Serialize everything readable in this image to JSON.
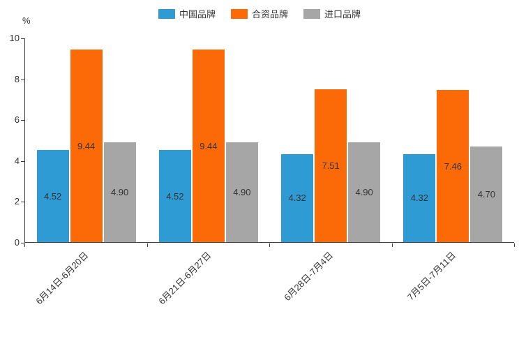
{
  "chart_data": {
    "type": "bar",
    "title": "",
    "categories": [
      "6月14日-6月20日",
      "6月21日-6月27日",
      "6月28日-7月4日",
      "7月5日-7月11日"
    ],
    "series": [
      {
        "name": "中国品牌",
        "key": "china-brands",
        "color": "#2E9BD5",
        "values": [
          4.52,
          4.52,
          4.32,
          4.32
        ]
      },
      {
        "name": "合资品牌",
        "key": "joint-venture-brands",
        "color": "#FB6A06",
        "values": [
          9.44,
          9.44,
          7.51,
          7.46
        ]
      },
      {
        "name": "进口品牌",
        "key": "import-brands",
        "color": "#A6A6A6",
        "values": [
          4.9,
          4.9,
          4.9,
          4.7
        ]
      }
    ],
    "xlabel": "",
    "ylabel": "%",
    "ylim": [
      0,
      10
    ],
    "yticks": [
      0,
      2,
      4,
      6,
      8,
      10
    ],
    "grid": false,
    "legend_position": "top",
    "data_labels": "inside-center"
  }
}
